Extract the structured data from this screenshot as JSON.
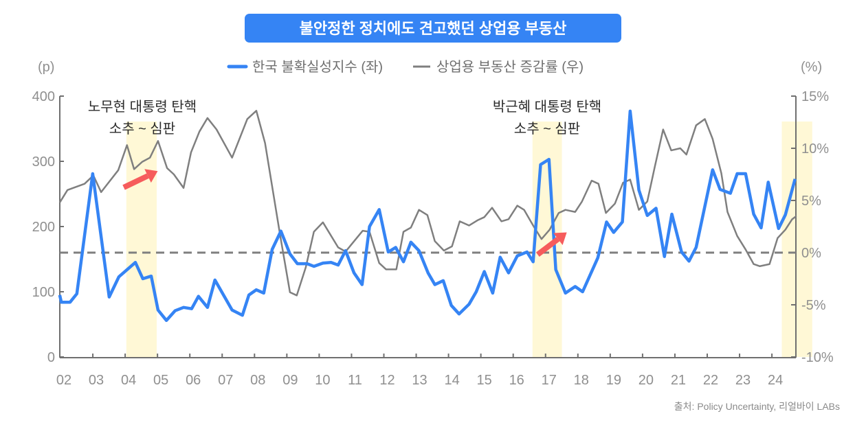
{
  "chart_data": {
    "type": "line",
    "title": "불안정한 정치에도 견고했던 상업용 부동산",
    "left_axis": {
      "unit_label": "(p)",
      "ylim": [
        0,
        400
      ],
      "ticks": [
        "0",
        "100",
        "200",
        "300",
        "400"
      ],
      "tick_values": [
        0,
        100,
        200,
        300,
        400
      ]
    },
    "right_axis": {
      "unit_label": "(%)",
      "ylim": [
        -10,
        15
      ],
      "ticks": [
        "-10%",
        "-5%",
        "0%",
        "5%",
        "10%",
        "15%"
      ],
      "tick_values": [
        -10,
        -5,
        0,
        5,
        10,
        15
      ]
    },
    "x_ticks": [
      "02",
      "03",
      "04",
      "05",
      "06",
      "07",
      "08",
      "09",
      "10",
      "11",
      "12",
      "13",
      "14",
      "15",
      "16",
      "17",
      "18",
      "19",
      "20",
      "21",
      "22",
      "23",
      "24"
    ],
    "x_range": [
      2001.85,
      2024.7
    ],
    "reference_line": {
      "axis": "right",
      "value": 0,
      "style": "dashed"
    },
    "legend": {
      "placement": "top-center"
    },
    "source": "출처: Policy Uncertainty, 리얼바이 LABs",
    "colors": {
      "title_bg": "#3584f4",
      "uncertainty": "#3584f4",
      "real_estate": "#7f7f7f",
      "highlight": "#fff8d6",
      "arrow": "#f65c5c",
      "axis": "#6f6f6f"
    },
    "series": [
      {
        "name": "한국 불확실성지수 (좌)",
        "axis": "left",
        "points": [
          [
            2001.87,
            95
          ],
          [
            2001.92,
            84
          ],
          [
            2002.19,
            84
          ],
          [
            2002.4,
            97
          ],
          [
            2002.89,
            281
          ],
          [
            2003.4,
            92
          ],
          [
            2003.7,
            123
          ],
          [
            2004.21,
            145
          ],
          [
            2004.44,
            120
          ],
          [
            2004.7,
            124
          ],
          [
            2004.91,
            72
          ],
          [
            2005.17,
            56
          ],
          [
            2005.44,
            71
          ],
          [
            2005.7,
            76
          ],
          [
            2005.95,
            74
          ],
          [
            2006.16,
            93
          ],
          [
            2006.44,
            76
          ],
          [
            2006.67,
            118
          ],
          [
            2007.2,
            72
          ],
          [
            2007.52,
            64
          ],
          [
            2007.72,
            95
          ],
          [
            2007.95,
            103
          ],
          [
            2008.18,
            98
          ],
          [
            2008.44,
            165
          ],
          [
            2008.71,
            193
          ],
          [
            2008.99,
            158
          ],
          [
            2009.22,
            143
          ],
          [
            2009.52,
            143
          ],
          [
            2009.73,
            139
          ],
          [
            2010.01,
            144
          ],
          [
            2010.26,
            145
          ],
          [
            2010.48,
            141
          ],
          [
            2010.71,
            163
          ],
          [
            2010.97,
            129
          ],
          [
            2011.22,
            111
          ],
          [
            2011.45,
            200
          ],
          [
            2011.75,
            226
          ],
          [
            2012.03,
            161
          ],
          [
            2012.26,
            168
          ],
          [
            2012.5,
            146
          ],
          [
            2012.73,
            176
          ],
          [
            2012.98,
            163
          ],
          [
            2013.26,
            129
          ],
          [
            2013.47,
            111
          ],
          [
            2013.73,
            117
          ],
          [
            2013.98,
            79
          ],
          [
            2014.22,
            66
          ],
          [
            2014.53,
            81
          ],
          [
            2014.75,
            100
          ],
          [
            2015.0,
            131
          ],
          [
            2015.26,
            98
          ],
          [
            2015.49,
            153
          ],
          [
            2015.75,
            129
          ],
          [
            2016.02,
            155
          ],
          [
            2016.32,
            161
          ],
          [
            2016.51,
            146
          ],
          [
            2016.74,
            295
          ],
          [
            2017.0,
            303
          ],
          [
            2017.21,
            134
          ],
          [
            2017.51,
            98
          ],
          [
            2017.81,
            108
          ],
          [
            2018.04,
            100
          ],
          [
            2018.51,
            152
          ],
          [
            2018.78,
            207
          ],
          [
            2019.0,
            191
          ],
          [
            2019.27,
            207
          ],
          [
            2019.51,
            377
          ],
          [
            2019.78,
            256
          ],
          [
            2020.04,
            217
          ],
          [
            2020.31,
            228
          ],
          [
            2020.57,
            154
          ],
          [
            2020.8,
            219
          ],
          [
            2021.1,
            161
          ],
          [
            2021.33,
            147
          ],
          [
            2021.55,
            168
          ],
          [
            2022.06,
            287
          ],
          [
            2022.29,
            257
          ],
          [
            2022.61,
            251
          ],
          [
            2022.82,
            281
          ],
          [
            2023.08,
            281
          ],
          [
            2023.33,
            219
          ],
          [
            2023.56,
            198
          ],
          [
            2023.78,
            268
          ],
          [
            2024.1,
            197
          ],
          [
            2024.31,
            218
          ],
          [
            2024.61,
            273
          ]
        ]
      },
      {
        "name": "상업용 부동산 증감률 (우)",
        "axis": "right",
        "points": [
          [
            2001.87,
            4.8
          ],
          [
            2002.11,
            6.0
          ],
          [
            2002.64,
            6.6
          ],
          [
            2002.91,
            7.4
          ],
          [
            2003.15,
            5.8
          ],
          [
            2003.68,
            7.9
          ],
          [
            2003.95,
            10.3
          ],
          [
            2004.17,
            8.0
          ],
          [
            2004.42,
            8.7
          ],
          [
            2004.66,
            9.1
          ],
          [
            2004.91,
            10.7
          ],
          [
            2005.19,
            8.1
          ],
          [
            2005.4,
            7.5
          ],
          [
            2005.7,
            6.2
          ],
          [
            2005.93,
            9.6
          ],
          [
            2006.19,
            11.6
          ],
          [
            2006.44,
            12.9
          ],
          [
            2006.72,
            11.8
          ],
          [
            2007.2,
            9.1
          ],
          [
            2007.67,
            12.8
          ],
          [
            2007.95,
            13.6
          ],
          [
            2008.22,
            10.5
          ],
          [
            2008.69,
            1.6
          ],
          [
            2008.99,
            -3.8
          ],
          [
            2009.2,
            -4.1
          ],
          [
            2009.48,
            -1.4
          ],
          [
            2009.73,
            2.0
          ],
          [
            2010.01,
            2.9
          ],
          [
            2010.48,
            0.5
          ],
          [
            2010.71,
            0.1
          ],
          [
            2011.24,
            2.1
          ],
          [
            2011.45,
            2.0
          ],
          [
            2011.75,
            -1.0
          ],
          [
            2011.96,
            -1.6
          ],
          [
            2012.28,
            -1.6
          ],
          [
            2012.5,
            2.0
          ],
          [
            2012.73,
            2.4
          ],
          [
            2012.98,
            4.1
          ],
          [
            2013.24,
            3.6
          ],
          [
            2013.47,
            1.1
          ],
          [
            2013.75,
            0.2
          ],
          [
            2014.0,
            0.6
          ],
          [
            2014.24,
            3.0
          ],
          [
            2014.53,
            2.6
          ],
          [
            2014.79,
            3.1
          ],
          [
            2015.0,
            3.4
          ],
          [
            2015.24,
            4.3
          ],
          [
            2015.53,
            3.0
          ],
          [
            2015.75,
            3.2
          ],
          [
            2016.02,
            4.5
          ],
          [
            2016.23,
            4.1
          ],
          [
            2016.51,
            2.6
          ],
          [
            2016.77,
            1.3
          ],
          [
            2017.02,
            2.2
          ],
          [
            2017.3,
            3.8
          ],
          [
            2017.51,
            4.1
          ],
          [
            2017.81,
            3.9
          ],
          [
            2018.02,
            4.9
          ],
          [
            2018.32,
            6.9
          ],
          [
            2018.53,
            6.6
          ],
          [
            2018.76,
            3.8
          ],
          [
            2019.04,
            4.7
          ],
          [
            2019.29,
            6.7
          ],
          [
            2019.51,
            7.0
          ],
          [
            2019.78,
            4.1
          ],
          [
            2020.04,
            4.9
          ],
          [
            2020.27,
            8.2
          ],
          [
            2020.53,
            11.8
          ],
          [
            2020.78,
            9.8
          ],
          [
            2021.06,
            10.0
          ],
          [
            2021.25,
            9.4
          ],
          [
            2021.55,
            12.2
          ],
          [
            2021.82,
            12.8
          ],
          [
            2022.06,
            10.9
          ],
          [
            2022.33,
            7.6
          ],
          [
            2022.52,
            3.9
          ],
          [
            2022.82,
            1.6
          ],
          [
            2023.08,
            0.3
          ],
          [
            2023.33,
            -1.1
          ],
          [
            2023.52,
            -1.3
          ],
          [
            2023.82,
            -1.1
          ],
          [
            2024.07,
            1.4
          ],
          [
            2024.31,
            2.2
          ],
          [
            2024.52,
            3.2
          ],
          [
            2024.65,
            3.5
          ]
        ]
      }
    ],
    "highlights": [
      {
        "from": 2003.93,
        "to": 2004.87,
        "label_line1": "노무현 대통령 탄핵",
        "label_line2": "소추 ~ 심판"
      },
      {
        "from": 2016.49,
        "to": 2017.4,
        "label_line1": "박근혜 대통령 탄핵",
        "label_line2": "소추 ~ 심판"
      },
      {
        "from": 2024.2,
        "to": 2025.14
      }
    ],
    "arrows": [
      {
        "from": [
          2003.85,
          260
        ],
        "to": [
          2004.9,
          285
        ]
      },
      {
        "from": [
          2016.65,
          157
        ],
        "to": [
          2017.55,
          191
        ]
      }
    ]
  }
}
